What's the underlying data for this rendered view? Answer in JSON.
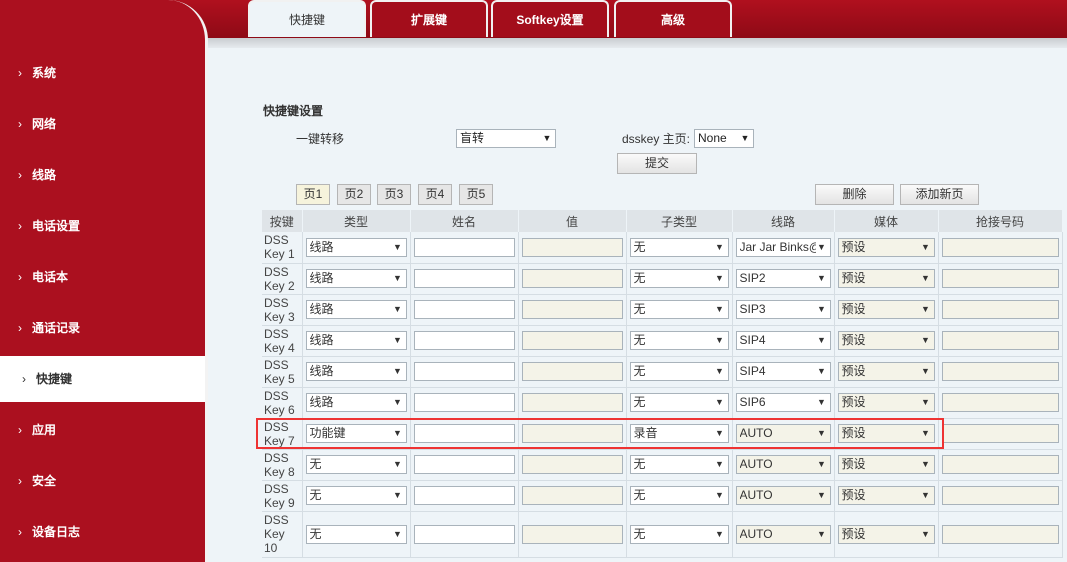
{
  "tabs": [
    "快捷键",
    "扩展键",
    "Softkey设置",
    "高级"
  ],
  "sidebar": [
    "系统",
    "网络",
    "线路",
    "电话设置",
    "电话本",
    "通话记录",
    "快捷键",
    "应用",
    "安全",
    "设备日志"
  ],
  "section_title": "快捷键设置",
  "transfer_label": "一键转移",
  "transfer_value": "盲转",
  "dsskey_home_label": "dsskey 主页:",
  "dsskey_home_value": "None",
  "submit": "提交",
  "pages": [
    "页1",
    "页2",
    "页3",
    "页4",
    "页5"
  ],
  "delete": "删除",
  "add_page": "添加新页",
  "columns": [
    "按键",
    "类型",
    "姓名",
    "值",
    "子类型",
    "线路",
    "媒体",
    "抢接号码"
  ],
  "rows": [
    {
      "key": "DSS Key 1",
      "type": "线路",
      "name": "",
      "value": "",
      "subtype": "无",
      "line": "Jar Jar Binks@",
      "media": "预设"
    },
    {
      "key": "DSS Key 2",
      "type": "线路",
      "name": "",
      "value": "",
      "subtype": "无",
      "line": "SIP2",
      "media": "预设"
    },
    {
      "key": "DSS Key 3",
      "type": "线路",
      "name": "",
      "value": "",
      "subtype": "无",
      "line": "SIP3",
      "media": "预设"
    },
    {
      "key": "DSS Key 4",
      "type": "线路",
      "name": "",
      "value": "",
      "subtype": "无",
      "line": "SIP4",
      "media": "预设"
    },
    {
      "key": "DSS Key 5",
      "type": "线路",
      "name": "",
      "value": "",
      "subtype": "无",
      "line": "SIP4",
      "media": "预设"
    },
    {
      "key": "DSS Key 6",
      "type": "线路",
      "name": "",
      "value": "",
      "subtype": "无",
      "line": "SIP6",
      "media": "预设"
    },
    {
      "key": "DSS Key 7",
      "type": "功能键",
      "name": "",
      "value": "",
      "subtype": "录音",
      "line": "AUTO",
      "media": "预设"
    },
    {
      "key": "DSS Key 8",
      "type": "无",
      "name": "",
      "value": "",
      "subtype": "无",
      "line": "AUTO",
      "media": "预设"
    },
    {
      "key": "DSS Key 9",
      "type": "无",
      "name": "",
      "value": "",
      "subtype": "无",
      "line": "AUTO",
      "media": "预设"
    },
    {
      "key": "DSS Key 10",
      "type": "无",
      "name": "",
      "value": "",
      "subtype": "无",
      "line": "AUTO",
      "media": "预设"
    }
  ],
  "colors": {
    "brand_red": "#ab101f",
    "highlight": "#e33333"
  }
}
